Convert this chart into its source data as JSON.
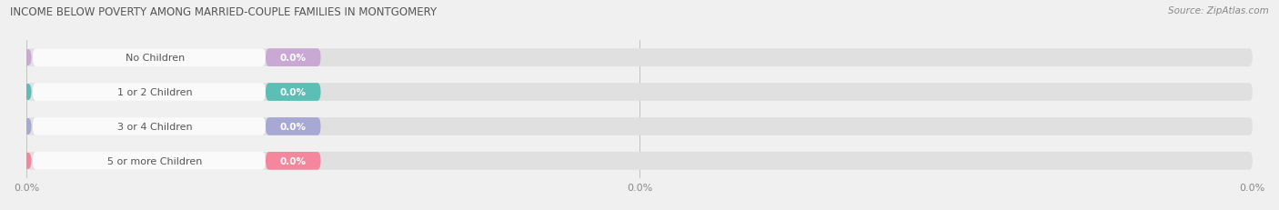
{
  "title": "INCOME BELOW POVERTY AMONG MARRIED-COUPLE FAMILIES IN MONTGOMERY",
  "source": "Source: ZipAtlas.com",
  "categories": [
    "No Children",
    "1 or 2 Children",
    "3 or 4 Children",
    "5 or more Children"
  ],
  "values": [
    0.0,
    0.0,
    0.0,
    0.0
  ],
  "bar_colors": [
    "#c9a8d4",
    "#5bbfb5",
    "#a8a8d4",
    "#f4879e"
  ],
  "background_color": "#f0f0f0",
  "bar_bg_color": "#e0e0e0",
  "label_bg_color": "#fafafa",
  "figsize": [
    14.06,
    2.32
  ],
  "dpi": 100
}
